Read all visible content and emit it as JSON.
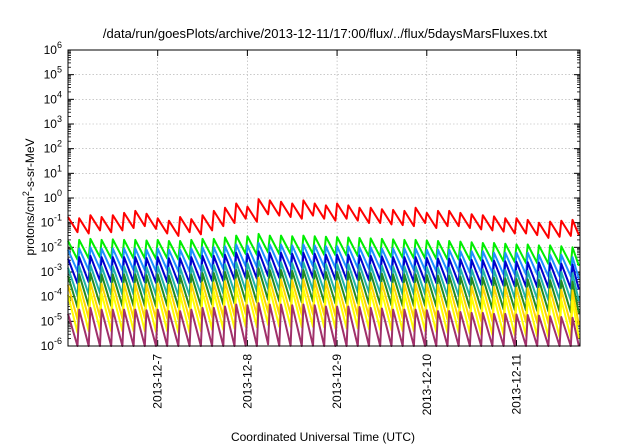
{
  "chart_data": {
    "type": "line",
    "title": "/data/run/goesPlots/archive/2013-12-11/17:00/flux/../flux/5daysMarsFluxes.txt",
    "xlabel": "Coordinated Universal Time (UTC)",
    "ylabel": {
      "prefix": "protons/cm",
      "sup": "2",
      "suffix": "-s-sr-MeV"
    },
    "yscale": "log",
    "ylim": [
      1e-06,
      1000000.0
    ],
    "y_ticks": [
      {
        "value": 1e-06,
        "base": "10",
        "exp": "-6"
      },
      {
        "value": 1e-05,
        "base": "10",
        "exp": "-5"
      },
      {
        "value": 0.0001,
        "base": "10",
        "exp": "-4"
      },
      {
        "value": 0.001,
        "base": "10",
        "exp": "-3"
      },
      {
        "value": 0.01,
        "base": "10",
        "exp": "-2"
      },
      {
        "value": 0.1,
        "base": "10",
        "exp": "-1"
      },
      {
        "value": 1,
        "base": "10",
        "exp": "0"
      },
      {
        "value": 10,
        "base": "10",
        "exp": "1"
      },
      {
        "value": 100,
        "base": "10",
        "exp": "2"
      },
      {
        "value": 1000,
        "base": "10",
        "exp": "3"
      },
      {
        "value": 10000,
        "base": "10",
        "exp": "4"
      },
      {
        "value": 100000,
        "base": "10",
        "exp": "5"
      },
      {
        "value": 1000000,
        "base": "10",
        "exp": "6"
      }
    ],
    "xlim": [
      "2013-12-06 00:00",
      "2013-12-11 17:00"
    ],
    "x_ticks": [
      {
        "value": "2013-12-07 00:00",
        "label": "2013-12-7"
      },
      {
        "value": "2013-12-08 00:00",
        "label": "2013-12-8"
      },
      {
        "value": "2013-12-09 00:00",
        "label": "2013-12-9"
      },
      {
        "value": "2013-12-10 00:00",
        "label": "2013-12-10"
      },
      {
        "value": "2013-12-11 00:00",
        "label": "2013-12-11"
      }
    ],
    "grid": true,
    "x": [
      "2013-12-06 00:00",
      "2013-12-06 03:00",
      "2013-12-06 06:00",
      "2013-12-06 09:00",
      "2013-12-06 12:00",
      "2013-12-06 15:00",
      "2013-12-06 18:00",
      "2013-12-06 21:00",
      "2013-12-07 00:00",
      "2013-12-07 03:00",
      "2013-12-07 06:00",
      "2013-12-07 09:00",
      "2013-12-07 12:00",
      "2013-12-07 15:00",
      "2013-12-07 18:00",
      "2013-12-07 21:00",
      "2013-12-08 00:00",
      "2013-12-08 03:00",
      "2013-12-08 06:00",
      "2013-12-08 09:00",
      "2013-12-08 12:00",
      "2013-12-08 15:00",
      "2013-12-08 18:00",
      "2013-12-08 21:00",
      "2013-12-09 00:00",
      "2013-12-09 03:00",
      "2013-12-09 06:00",
      "2013-12-09 09:00",
      "2013-12-09 12:00",
      "2013-12-09 15:00",
      "2013-12-09 18:00",
      "2013-12-09 21:00",
      "2013-12-10 00:00",
      "2013-12-10 03:00",
      "2013-12-10 06:00",
      "2013-12-10 09:00",
      "2013-12-10 12:00",
      "2013-12-10 15:00",
      "2013-12-10 18:00",
      "2013-12-10 21:00",
      "2013-12-11 00:00",
      "2013-12-11 03:00",
      "2013-12-11 06:00",
      "2013-12-11 09:00",
      "2013-12-11 12:00",
      "2013-12-11 15:00"
    ],
    "series": [
      {
        "color": "#ff0000",
        "values": [
          0.17,
          0.15,
          0.2,
          0.17,
          0.2,
          0.25,
          0.3,
          0.23,
          0.15,
          0.12,
          0.17,
          0.14,
          0.2,
          0.3,
          0.4,
          0.6,
          0.45,
          0.9,
          0.8,
          0.7,
          0.6,
          0.8,
          0.6,
          0.5,
          0.6,
          0.5,
          0.4,
          0.4,
          0.35,
          0.33,
          0.3,
          0.4,
          0.25,
          0.3,
          0.3,
          0.25,
          0.22,
          0.2,
          0.18,
          0.15,
          0.15,
          0.13,
          0.1,
          0.11,
          0.12,
          0.13
        ]
      },
      {
        "color": "#00ee00",
        "values": [
          0.018,
          0.02,
          0.022,
          0.02,
          0.021,
          0.02,
          0.02,
          0.019,
          0.02,
          0.018,
          0.018,
          0.02,
          0.022,
          0.022,
          0.025,
          0.03,
          0.028,
          0.035,
          0.03,
          0.03,
          0.028,
          0.03,
          0.028,
          0.027,
          0.026,
          0.025,
          0.024,
          0.023,
          0.022,
          0.021,
          0.02,
          0.02,
          0.019,
          0.018,
          0.018,
          0.017,
          0.016,
          0.015,
          0.015,
          0.014,
          0.013,
          0.013,
          0.012,
          0.012,
          0.011,
          0.01
        ]
      },
      {
        "color": "#1e90ff",
        "values": [
          0.008,
          0.009,
          0.01,
          0.009,
          0.009,
          0.009,
          0.009,
          0.008,
          0.009,
          0.008,
          0.008,
          0.009,
          0.01,
          0.01,
          0.011,
          0.013,
          0.012,
          0.015,
          0.013,
          0.013,
          0.012,
          0.013,
          0.012,
          0.011,
          0.011,
          0.011,
          0.01,
          0.01,
          0.009,
          0.009,
          0.009,
          0.009,
          0.008,
          0.008,
          0.008,
          0.007,
          0.007,
          0.007,
          0.006,
          0.006,
          0.006,
          0.006,
          0.005,
          0.005,
          0.005,
          0.004
        ]
      },
      {
        "color": "#0000cd",
        "values": [
          0.0035,
          0.004,
          0.0045,
          0.004,
          0.004,
          0.004,
          0.004,
          0.0037,
          0.004,
          0.0036,
          0.0036,
          0.004,
          0.0045,
          0.0045,
          0.005,
          0.006,
          0.0055,
          0.007,
          0.006,
          0.006,
          0.0055,
          0.006,
          0.0055,
          0.005,
          0.005,
          0.005,
          0.0047,
          0.0045,
          0.0043,
          0.004,
          0.004,
          0.004,
          0.0037,
          0.0035,
          0.0035,
          0.0033,
          0.0031,
          0.003,
          0.0029,
          0.0027,
          0.0026,
          0.0025,
          0.0024,
          0.0023,
          0.0022,
          0.002
        ]
      },
      {
        "color": "#20b2aa",
        "values": [
          0.0015,
          0.0017,
          0.0019,
          0.0017,
          0.0017,
          0.0017,
          0.0017,
          0.0016,
          0.0017,
          0.0015,
          0.0015,
          0.0017,
          0.0019,
          0.0019,
          0.0021,
          0.0025,
          0.0023,
          0.0029,
          0.0025,
          0.0025,
          0.0023,
          0.0025,
          0.0023,
          0.0021,
          0.0021,
          0.0021,
          0.002,
          0.0019,
          0.0018,
          0.0017,
          0.0017,
          0.0017,
          0.0016,
          0.0015,
          0.0015,
          0.0014,
          0.0013,
          0.0013,
          0.0012,
          0.0012,
          0.0011,
          0.0011,
          0.001,
          0.001,
          0.001,
          0.0009
        ]
      },
      {
        "color": "#228b22",
        "values": [
          0.0007,
          0.0008,
          0.0009,
          0.0008,
          0.0008,
          0.0008,
          0.0008,
          0.00075,
          0.0008,
          0.0007,
          0.0007,
          0.0008,
          0.0009,
          0.0009,
          0.001,
          0.0012,
          0.0011,
          0.0014,
          0.0012,
          0.0012,
          0.0011,
          0.0012,
          0.0011,
          0.001,
          0.001,
          0.001,
          0.00095,
          0.0009,
          0.00085,
          0.0008,
          0.0008,
          0.0008,
          0.00075,
          0.0007,
          0.0007,
          0.00065,
          0.0006,
          0.0006,
          0.00058,
          0.00055,
          0.00052,
          0.0005,
          0.00048,
          0.00046,
          0.00044,
          0.0004
        ]
      },
      {
        "color": "#ffd700",
        "values": [
          0.0003,
          0.00034,
          0.00038,
          0.00034,
          0.00034,
          0.00034,
          0.00034,
          0.00032,
          0.00034,
          0.0003,
          0.0003,
          0.00034,
          0.00038,
          0.00038,
          0.00042,
          0.0005,
          0.00046,
          0.00058,
          0.0005,
          0.0005,
          0.00046,
          0.0005,
          0.00046,
          0.00042,
          0.00042,
          0.00042,
          0.0004,
          0.00038,
          0.00036,
          0.00034,
          0.00034,
          0.00034,
          0.00032,
          0.0003,
          0.0003,
          0.00028,
          0.00026,
          0.00026,
          0.00025,
          0.00024,
          0.00023,
          0.00022,
          0.00021,
          0.0002,
          0.00019,
          0.00018
        ]
      },
      {
        "color": "#ffff00",
        "values": [
          0.00012,
          0.00014,
          0.00016,
          0.00014,
          0.00014,
          0.00014,
          0.00014,
          0.00013,
          0.00014,
          0.00012,
          0.00012,
          0.00014,
          0.00016,
          0.00016,
          0.00018,
          0.00021,
          0.0002,
          0.00025,
          0.00021,
          0.00021,
          0.0002,
          0.00021,
          0.0002,
          0.00018,
          0.00018,
          0.00018,
          0.00017,
          0.00016,
          0.00015,
          0.00014,
          0.00014,
          0.00014,
          0.00013,
          0.00012,
          0.00012,
          0.00011,
          0.0001,
          0.0001,
          0.0001,
          9.5e-05,
          9e-05,
          8.5e-05,
          8e-05,
          7.8e-05,
          7.5e-05,
          7e-05
        ]
      },
      {
        "color": "#a0306a",
        "values": [
          2e-05,
          3e-05,
          3.5e-05,
          3e-05,
          3e-05,
          3e-05,
          3e-05,
          2.8e-05,
          3e-05,
          2.6e-05,
          2.6e-05,
          3e-05,
          3.5e-05,
          3.5e-05,
          4e-05,
          4.8e-05,
          4.5e-05,
          5.5e-05,
          4.8e-05,
          4.8e-05,
          4.5e-05,
          4.8e-05,
          4.5e-05,
          4e-05,
          4e-05,
          4e-05,
          3.8e-05,
          3.5e-05,
          3.3e-05,
          3e-05,
          3e-05,
          3e-05,
          2.8e-05,
          2.6e-05,
          2.6e-05,
          2.4e-05,
          2.2e-05,
          2.2e-05,
          2e-05,
          2e-05,
          1.9e-05,
          1.8e-05,
          1.7e-05,
          1.6e-05,
          1.5e-05,
          1.4e-05
        ]
      }
    ]
  }
}
